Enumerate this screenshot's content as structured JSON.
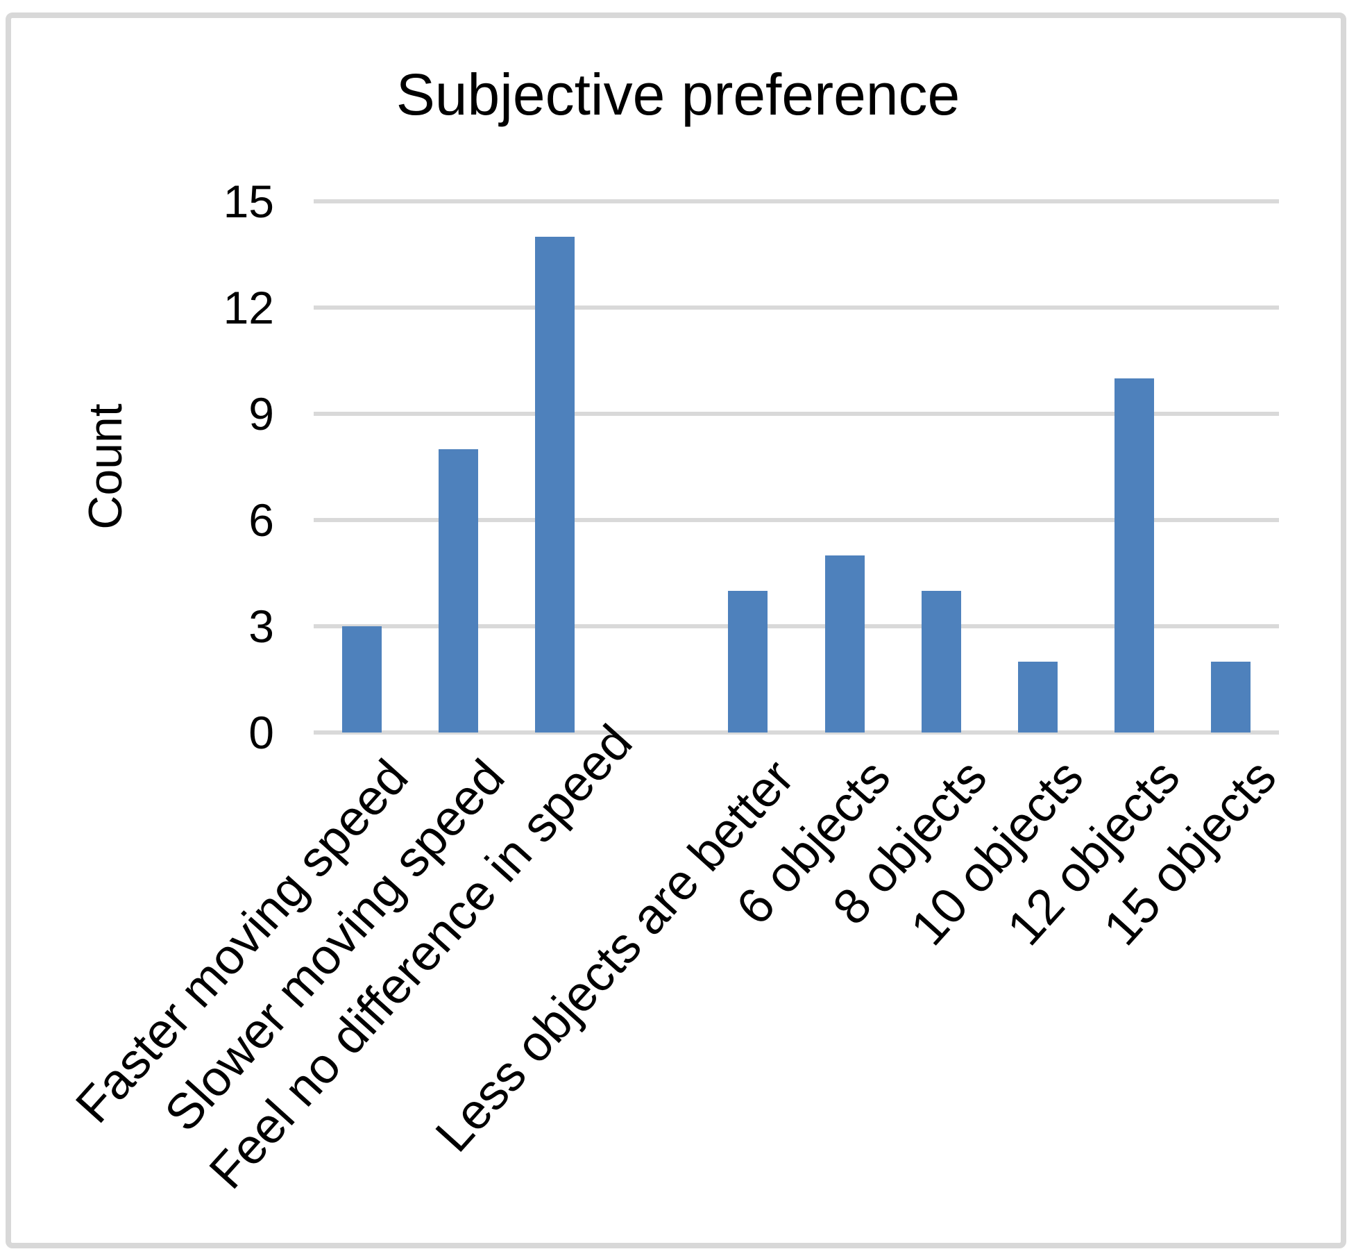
{
  "chart_data": {
    "type": "bar",
    "title": "Subjective preference",
    "xlabel": "",
    "ylabel": "Count",
    "categories": [
      "Faster moving speed",
      "Slower moving speed",
      "Feel no difference in speed",
      "",
      "Less objects are better",
      "6 objects",
      "8 objects",
      "10 objects",
      "12 objects",
      "15 objects"
    ],
    "values": [
      3,
      8,
      14,
      0,
      4,
      5,
      4,
      2,
      10,
      2
    ],
    "yticks": [
      0,
      3,
      6,
      9,
      12,
      15
    ],
    "ylim": [
      0,
      15
    ],
    "grid": "horizontal",
    "legend_position": "none",
    "bar_color": "#4E81BC",
    "gridline_color": "#D9D9D9",
    "frame_color": "#D8D8D8",
    "text_color": "#000000"
  }
}
